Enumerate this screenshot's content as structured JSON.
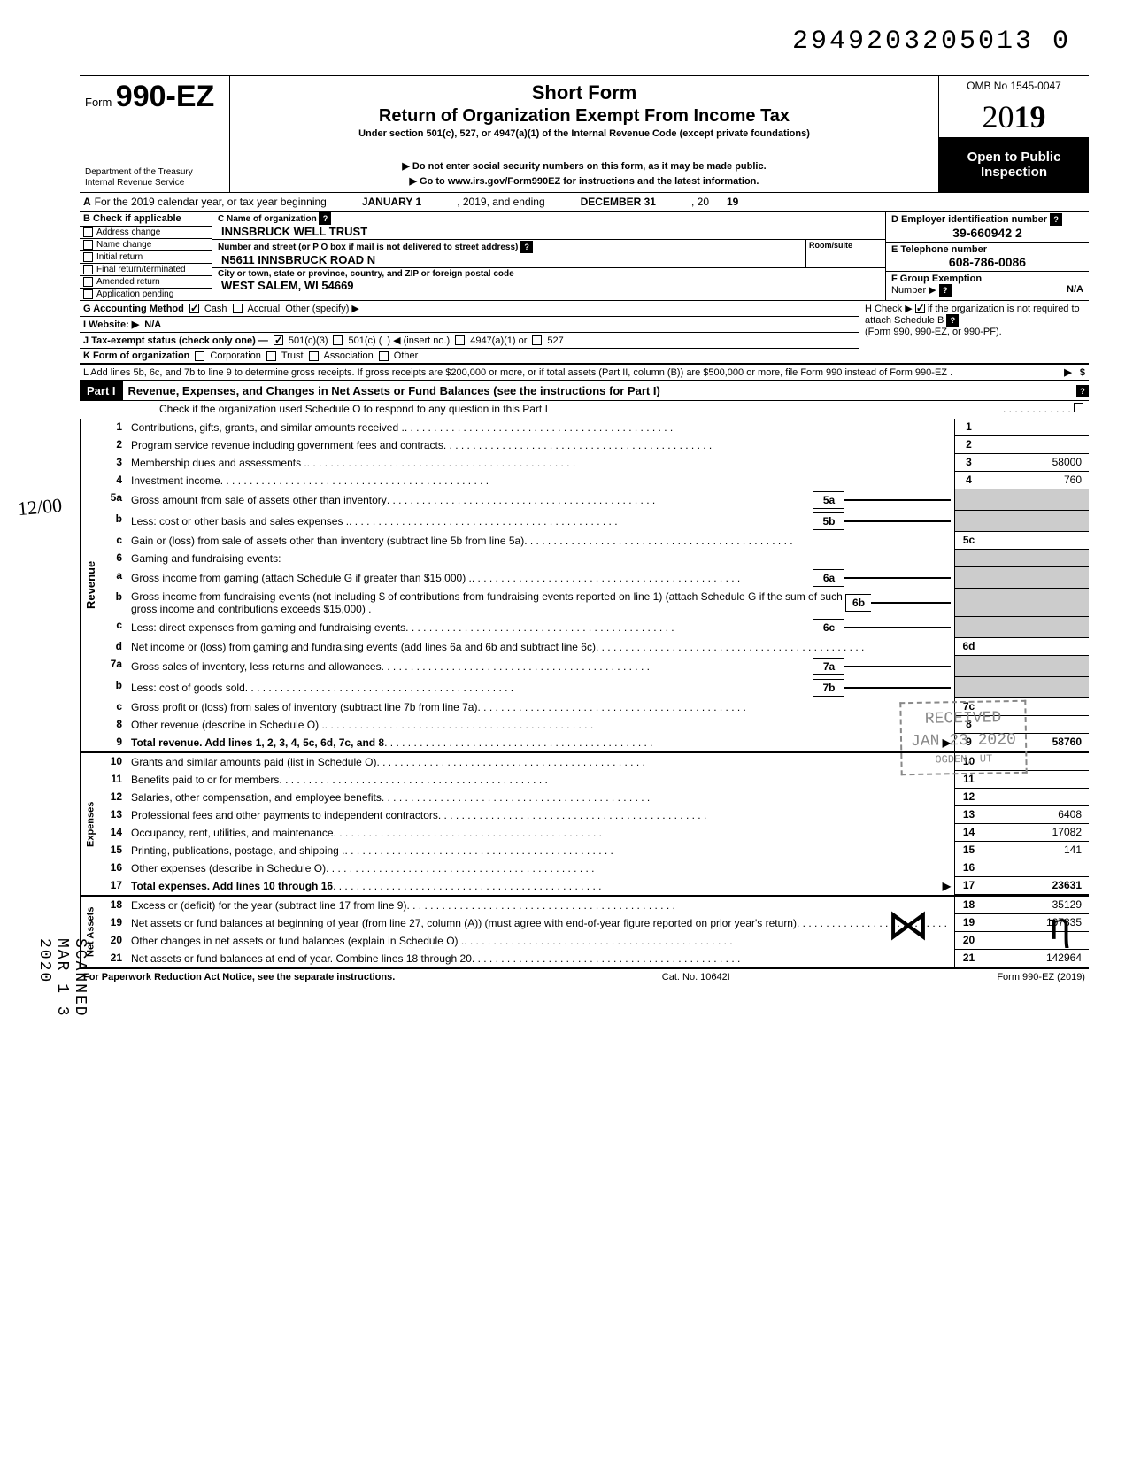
{
  "tracking_number": "2949203205013 0",
  "form": {
    "prefix": "Form",
    "number": "990-EZ",
    "dept1": "Department of the Treasury",
    "dept2": "Internal Revenue Service"
  },
  "title": {
    "main": "Short Form",
    "sub": "Return of Organization Exempt From Income Tax",
    "under": "Under section 501(c), 527, or 4947(a)(1) of the Internal Revenue Code (except private foundations)",
    "note1": "▶ Do not enter social security numbers on this form, as it may be made public.",
    "note2": "▶ Go to www.irs.gov/Form990EZ for instructions and the latest information."
  },
  "omb": "OMB No 1545-0047",
  "year_prefix": "20",
  "year_bold": "19",
  "open": "Open to Public Inspection",
  "row_a": {
    "label_a": "A",
    "text1": "For the 2019 calendar year, or tax year beginning",
    "val1": "JANUARY 1",
    "text2": ", 2019, and ending",
    "val2": "DECEMBER 31",
    "text3": ", 20",
    "val3": "19"
  },
  "col_b": {
    "hdr": "B  Check if applicable",
    "items": [
      "Address change",
      "Name change",
      "Initial return",
      "Final return/terminated",
      "Amended return",
      "Application pending"
    ]
  },
  "col_c": {
    "label1": "C  Name of organization",
    "val1": "INNSBRUCK WELL TRUST",
    "label2": "Number and street (or P O  box if mail is not delivered to street address)",
    "room": "Room/suite",
    "val2": "N5611 INNSBRUCK ROAD N",
    "label3": "City or town, state or province, country, and ZIP or foreign postal code",
    "val3": "WEST SALEM, WI 54669"
  },
  "col_d": {
    "label1": "D Employer identification number",
    "val1": "39-660942 2",
    "label2": "E  Telephone number",
    "val2": "608-786-0086",
    "label3": "F  Group Exemption",
    "label3b": "Number ▶",
    "val3": "N/A"
  },
  "row_g": "G  Accounting Method",
  "g_cash": "Cash",
  "g_accrual": "Accrual",
  "g_other": "Other (specify) ▶",
  "row_h": "H  Check ▶",
  "row_h2": "if the organization is not required to attach Schedule B",
  "row_h3": "(Form 990, 990-EZ, or 990-PF).",
  "row_i": "I   Website: ▶",
  "row_i_val": "N/A",
  "row_j": "J  Tax-exempt status (check only one) —",
  "j_opts": [
    "501(c)(3)",
    "501(c) (",
    "4947(a)(1) or",
    "527"
  ],
  "j_insert": ") ◀ (insert no.)",
  "row_k": "K  Form of organization",
  "k_opts": [
    "Corporation",
    "Trust",
    "Association",
    "Other"
  ],
  "row_l": "L  Add lines 5b, 6c, and 7b to line 9 to determine gross receipts. If gross receipts are $200,000 or more, or if total assets (Part II, column (B)) are $500,000 or more, file Form 990 instead of Form 990-EZ .",
  "part1": {
    "hdr": "Part I",
    "title": "Revenue, Expenses, and Changes in Net Assets or Fund Balances (see the instructions for Part I)",
    "sub": "Check if the organization used Schedule O to respond to any question in this Part I"
  },
  "sections": {
    "revenue": "Revenue",
    "expenses": "Expenses",
    "netassets": "Net Assets"
  },
  "lines": [
    {
      "n": "1",
      "d": "Contributions, gifts, grants, and similar amounts received .",
      "e": "1",
      "v": ""
    },
    {
      "n": "2",
      "d": "Program service revenue including government fees and contracts",
      "e": "2",
      "v": ""
    },
    {
      "n": "3",
      "d": "Membership dues and assessments .",
      "e": "3",
      "v": "58000"
    },
    {
      "n": "4",
      "d": "Investment income",
      "e": "4",
      "v": "760"
    },
    {
      "n": "5a",
      "d": "Gross amount from sale of assets other than inventory",
      "sb": "5a"
    },
    {
      "n": "b",
      "d": "Less: cost or other basis and sales expenses .",
      "sb": "5b"
    },
    {
      "n": "c",
      "d": "Gain or (loss) from sale of assets other than inventory (subtract line 5b from line 5a)",
      "e": "5c",
      "v": ""
    },
    {
      "n": "6",
      "d": "Gaming and fundraising events:"
    },
    {
      "n": "a",
      "d": "Gross income from gaming (attach Schedule G if greater than $15,000) .",
      "sb": "6a"
    },
    {
      "n": "b",
      "d": "Gross income from fundraising events (not including  $                    of contributions from fundraising events reported on line 1) (attach Schedule G if the sum of such gross income and contributions exceeds $15,000) .",
      "sb": "6b"
    },
    {
      "n": "c",
      "d": "Less: direct expenses from gaming and fundraising events",
      "sb": "6c"
    },
    {
      "n": "d",
      "d": "Net income or (loss) from gaming and fundraising events (add lines 6a and 6b and subtract line 6c)",
      "e": "6d",
      "v": ""
    },
    {
      "n": "7a",
      "d": "Gross sales of inventory, less returns and allowances",
      "sb": "7a"
    },
    {
      "n": "b",
      "d": "Less: cost of goods sold",
      "sb": "7b"
    },
    {
      "n": "c",
      "d": "Gross profit or (loss) from sales of inventory (subtract line 7b from line 7a)",
      "e": "7c",
      "v": ""
    },
    {
      "n": "8",
      "d": "Other revenue (describe in Schedule O) .",
      "e": "8",
      "v": ""
    },
    {
      "n": "9",
      "d": "Total revenue. Add lines 1, 2, 3, 4, 5c, 6d, 7c, and 8",
      "e": "9",
      "v": "58760",
      "bold": true
    }
  ],
  "exp_lines": [
    {
      "n": "10",
      "d": "Grants and similar amounts paid (list in Schedule O)",
      "e": "10",
      "v": ""
    },
    {
      "n": "11",
      "d": "Benefits paid to or for members",
      "e": "11",
      "v": ""
    },
    {
      "n": "12",
      "d": "Salaries, other compensation, and employee benefits",
      "e": "12",
      "v": ""
    },
    {
      "n": "13",
      "d": "Professional fees and other payments to independent contractors",
      "e": "13",
      "v": "6408"
    },
    {
      "n": "14",
      "d": "Occupancy, rent, utilities, and maintenance",
      "e": "14",
      "v": "17082"
    },
    {
      "n": "15",
      "d": "Printing, publications, postage, and shipping .",
      "e": "15",
      "v": "141"
    },
    {
      "n": "16",
      "d": "Other expenses (describe in Schedule O)",
      "e": "16",
      "v": ""
    },
    {
      "n": "17",
      "d": "Total expenses. Add lines 10 through 16",
      "e": "17",
      "v": "23631",
      "bold": true
    }
  ],
  "na_lines": [
    {
      "n": "18",
      "d": "Excess or (deficit) for the year (subtract line 17 from line 9)",
      "e": "18",
      "v": "35129"
    },
    {
      "n": "19",
      "d": "Net assets or fund balances at beginning of year (from line 27, column (A)) (must agree with end-of-year figure reported on prior year's return)",
      "e": "19",
      "v": "107835"
    },
    {
      "n": "20",
      "d": "Other changes in net assets or fund balances (explain in Schedule O) .",
      "e": "20",
      "v": ""
    },
    {
      "n": "21",
      "d": "Net assets or fund balances at end of year. Combine lines 18 through 20",
      "e": "21",
      "v": "142964"
    }
  ],
  "footer": {
    "left": "For Paperwork Reduction Act Notice, see the separate instructions.",
    "mid": "Cat. No. 10642I",
    "right": "Form 990-EZ (2019)"
  },
  "stamp": {
    "l1": "RECEIVED",
    "l2": "JAN 23 2020",
    "l3": "OGDEN, UT"
  },
  "scanned": "SCANNED MAR 1 3 2020",
  "margin": "12/00",
  "sig1": "⋈",
  "sig2": "η"
}
